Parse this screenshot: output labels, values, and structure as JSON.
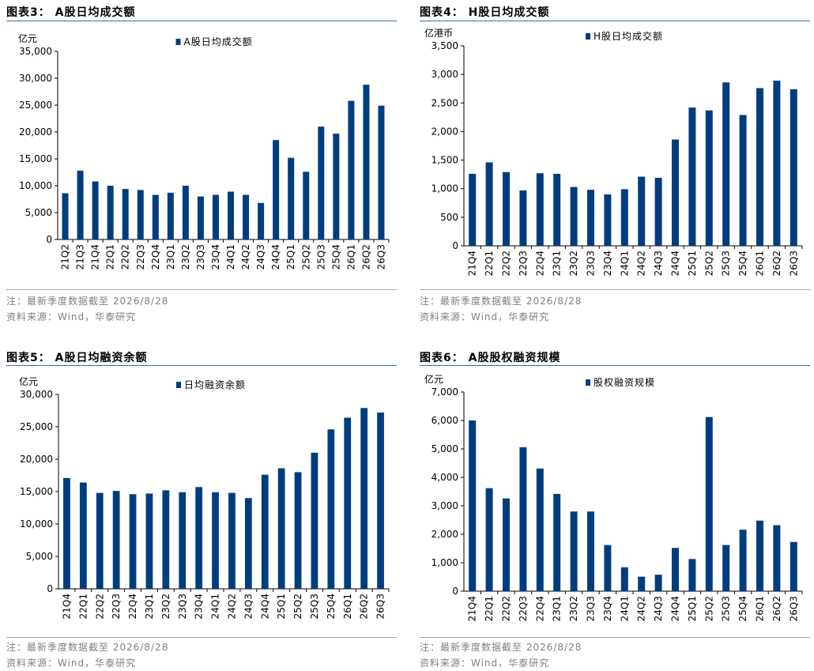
{
  "colors": {
    "bar": "#003d7f",
    "rule": "#3b6ea5",
    "note": "#7f7f7f"
  },
  "chart_data": [
    {
      "type": "bar",
      "title": "图表3： A股日均成交额",
      "unit": "亿元",
      "legend": "A股日均成交额",
      "ylim": [
        0,
        35000
      ],
      "ytick_step": 5000,
      "yticks": [
        "0",
        "5,000",
        "10,000",
        "15,000",
        "20,000",
        "25,000",
        "30,000",
        "35,000"
      ],
      "categories": [
        "21Q2",
        "21Q3",
        "21Q4",
        "22Q1",
        "22Q2",
        "22Q3",
        "22Q4",
        "23Q1",
        "23Q2",
        "23Q3",
        "23Q4",
        "24Q1",
        "24Q2",
        "24Q3",
        "24Q4",
        "25Q1",
        "25Q2",
        "25Q3",
        "25Q4",
        "26Q1",
        "26Q2",
        "26Q3"
      ],
      "values": [
        8600,
        12800,
        10800,
        10000,
        9400,
        9200,
        8300,
        8700,
        10000,
        8000,
        8300,
        8900,
        8300,
        6800,
        18500,
        15200,
        12600,
        21000,
        19700,
        25800,
        28800,
        24900
      ],
      "note": "注：最新季度数据截至 2026/8/28",
      "source": "资料来源：Wind，华泰研究"
    },
    {
      "type": "bar",
      "title": "图表4： H股日均成交额",
      "unit": "亿港币",
      "legend": "H股日均成交额",
      "ylim": [
        0,
        3500
      ],
      "ytick_step": 500,
      "yticks": [
        "0",
        "500",
        "1,000",
        "1,500",
        "2,000",
        "2,500",
        "3,000",
        "3,500"
      ],
      "categories": [
        "21Q4",
        "22Q1",
        "22Q2",
        "22Q3",
        "22Q4",
        "23Q1",
        "23Q2",
        "23Q3",
        "23Q4",
        "24Q1",
        "24Q2",
        "24Q3",
        "24Q4",
        "25Q1",
        "25Q2",
        "25Q3",
        "25Q4",
        "26Q1",
        "26Q2",
        "26Q3"
      ],
      "values": [
        1260,
        1460,
        1290,
        970,
        1270,
        1260,
        1030,
        980,
        900,
        990,
        1210,
        1190,
        1860,
        2420,
        2370,
        2860,
        2290,
        2760,
        2890,
        2740
      ],
      "note": "注：最新季度数据截至 2026/8/28",
      "source": "资料来源：Wind，华泰研究"
    },
    {
      "type": "bar",
      "title": "图表5： A股日均融资余额",
      "unit": "亿元",
      "legend": "日均融资余额",
      "ylim": [
        0,
        30000
      ],
      "ytick_step": 5000,
      "yticks": [
        "0",
        "5,000",
        "10,000",
        "15,000",
        "20,000",
        "25,000",
        "30,000"
      ],
      "categories": [
        "21Q4",
        "22Q1",
        "22Q2",
        "22Q3",
        "22Q4",
        "23Q1",
        "23Q2",
        "23Q3",
        "23Q4",
        "24Q1",
        "24Q2",
        "24Q3",
        "24Q4",
        "25Q1",
        "25Q2",
        "25Q3",
        "25Q4",
        "26Q1",
        "26Q2",
        "26Q3"
      ],
      "values": [
        17100,
        16400,
        14800,
        15100,
        14600,
        14700,
        15200,
        14900,
        15700,
        14900,
        14800,
        14000,
        17600,
        18600,
        18000,
        21000,
        24600,
        26400,
        27900,
        27200
      ],
      "note": "注：最新季度数据截至 2026/8/28",
      "source": "资料来源：Wind，华泰研究"
    },
    {
      "type": "bar",
      "title": "图表6： A股股权融资规模",
      "unit": "亿元",
      "legend": "股权融资规模",
      "ylim": [
        0,
        7000
      ],
      "ytick_step": 1000,
      "yticks": [
        "0",
        "1,000",
        "2,000",
        "3,000",
        "4,000",
        "5,000",
        "6,000",
        "7,000"
      ],
      "categories": [
        "21Q4",
        "22Q1",
        "22Q2",
        "22Q3",
        "22Q4",
        "23Q1",
        "23Q2",
        "23Q3",
        "23Q4",
        "24Q1",
        "24Q2",
        "24Q3",
        "24Q4",
        "25Q1",
        "25Q2",
        "25Q3",
        "25Q4",
        "26Q1",
        "26Q2",
        "26Q3"
      ],
      "values": [
        6000,
        3620,
        3260,
        5060,
        4310,
        3420,
        2800,
        2800,
        1620,
        840,
        510,
        580,
        1520,
        1130,
        6120,
        1620,
        2160,
        2480,
        2320,
        1730
      ],
      "note": "注：最新季度数据截至 2026/8/28",
      "source": "资料来源：Wind，华泰研究"
    }
  ]
}
